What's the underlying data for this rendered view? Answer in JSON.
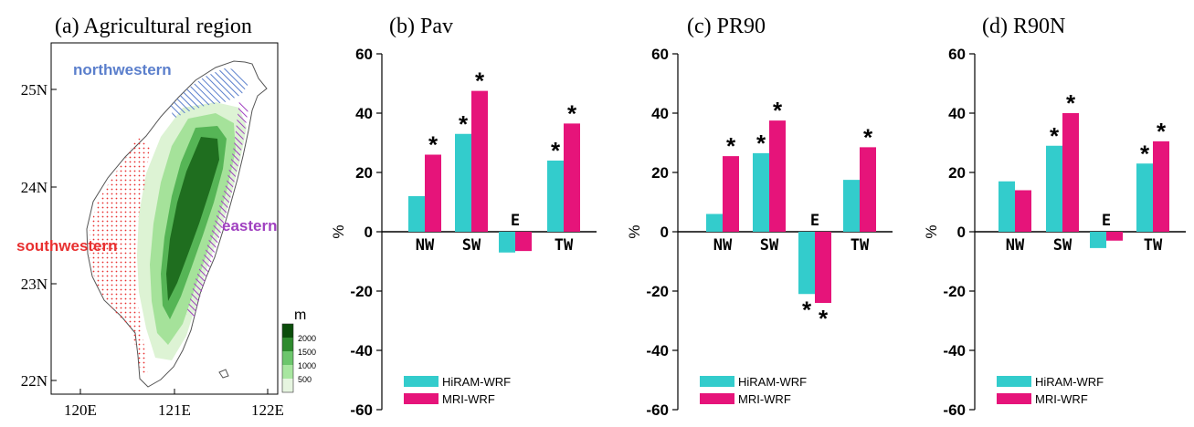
{
  "colors": {
    "hiram": "#33CCCC",
    "mri": "#E6147A",
    "land_outline": "#555555",
    "northwestern": "#5B7FCC",
    "southwestern": "#E83030",
    "eastern": "#A040C0",
    "terrain": [
      "#E6F5E0",
      "#A8E6A0",
      "#6CC66C",
      "#2E8B2E",
      "#0B4D0B"
    ]
  },
  "map": {
    "title": "(a) Agricultural region",
    "lat_labels": [
      "25N",
      "24N",
      "23N",
      "22N"
    ],
    "lon_labels": [
      "120E",
      "121E",
      "122E"
    ],
    "region_labels": {
      "northwestern": "northwestern",
      "southwestern": "southwestern",
      "eastern": "eastern"
    },
    "colorbar": {
      "unit": "m",
      "ticks": [
        "2000",
        "1500",
        "1000",
        "500"
      ]
    }
  },
  "chart_data": [
    {
      "type": "bar",
      "title": "(b) Pav",
      "ylabel": "%",
      "ylim": [
        -60,
        60
      ],
      "yticks": [
        "60",
        "40",
        "20",
        "0",
        "-20",
        "-40",
        "-60"
      ],
      "categories": [
        "NW",
        "SW",
        "E",
        "TW"
      ],
      "series": [
        {
          "name": "HiRAM-WRF",
          "values": [
            12,
            33,
            -7,
            24
          ],
          "significant": [
            false,
            true,
            false,
            true
          ]
        },
        {
          "name": "MRI-WRF",
          "values": [
            26,
            47.5,
            -6.5,
            36.5
          ],
          "significant": [
            true,
            true,
            false,
            true
          ]
        }
      ],
      "marker": "*"
    },
    {
      "type": "bar",
      "title": "(c) PR90",
      "ylabel": "%",
      "ylim": [
        -60,
        60
      ],
      "yticks": [
        "60",
        "40",
        "20",
        "0",
        "-20",
        "-40",
        "-60"
      ],
      "categories": [
        "NW",
        "SW",
        "E",
        "TW"
      ],
      "series": [
        {
          "name": "HiRAM-WRF",
          "values": [
            6,
            26.5,
            -21,
            17.5
          ],
          "significant": [
            false,
            true,
            true,
            false
          ]
        },
        {
          "name": "MRI-WRF",
          "values": [
            25.5,
            37.5,
            -24,
            28.5
          ],
          "significant": [
            true,
            true,
            true,
            true
          ]
        }
      ],
      "marker": "*"
    },
    {
      "type": "bar",
      "title": "(d) R90N",
      "ylabel": "%",
      "ylim": [
        -60,
        60
      ],
      "yticks": [
        "60",
        "40",
        "20",
        "0",
        "-20",
        "-40",
        "-60"
      ],
      "categories": [
        "NW",
        "SW",
        "E",
        "TW"
      ],
      "series": [
        {
          "name": "HiRAM-WRF",
          "values": [
            17,
            29,
            -5.5,
            23
          ],
          "significant": [
            false,
            true,
            false,
            true
          ]
        },
        {
          "name": "MRI-WRF",
          "values": [
            14,
            40,
            -3,
            30.5
          ],
          "significant": [
            false,
            true,
            false,
            true
          ]
        }
      ],
      "marker": "*"
    }
  ]
}
